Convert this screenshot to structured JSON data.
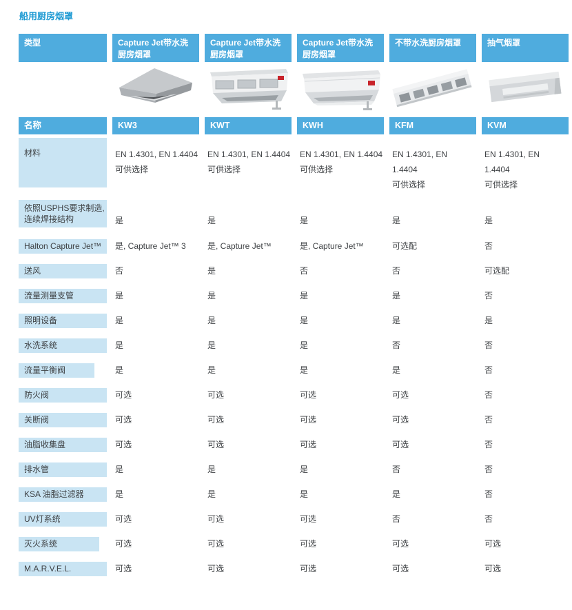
{
  "page": {
    "title": "船用厨房烟罩"
  },
  "colors": {
    "header_blue": "#4FACDE",
    "label_light_blue": "#C9E4F3",
    "title_blue": "#1E9AD3",
    "body_text": "#3F4245"
  },
  "table": {
    "type_label": "类型",
    "name_label": "名称",
    "type_columns": [
      "Capture Jet带水洗厨房烟罩",
      "Capture Jet带水洗厨房烟罩",
      "Capture Jet带水洗厨房烟罩",
      "不带水洗厨房烟罩",
      "抽气烟罩"
    ],
    "name_columns": [
      "KW3",
      "KWT",
      "KWH",
      "KFM",
      "KVM"
    ],
    "products": [
      {
        "code": "KW3",
        "image": "kw3-canopy-hood-image"
      },
      {
        "code": "KWT",
        "image": "kwt-box-hood-image"
      },
      {
        "code": "KWH",
        "image": "kwh-box-hood-image"
      },
      {
        "code": "KFM",
        "image": "kfm-filter-hood-image"
      },
      {
        "code": "KVM",
        "image": "kvm-exhaust-hood-image"
      }
    ],
    "material_row": {
      "label": "材料",
      "values": [
        "EN 1.4301, EN 1.4404\n可供选择",
        "EN 1.4301, EN 1.4404\n可供选择",
        "EN 1.4301, EN 1.4404\n可供选择",
        "EN 1.4301, EN\n1.4404\n可供选择",
        "EN 1.4301, EN\n1.4404\n可供选择"
      ]
    },
    "usphs_row": {
      "label": "依照USPHS要求制造,\n连续焊接结构",
      "values": [
        "是",
        "是",
        "是",
        "是",
        "是"
      ]
    },
    "rows": [
      {
        "label": "Halton Capture Jet™",
        "values": [
          "是, Capture Jet™ 3",
          "是, Capture Jet™",
          "是, Capture Jet™",
          "可选配",
          "否"
        ]
      },
      {
        "label": "送风",
        "values": [
          "否",
          "是",
          "否",
          "否",
          "可选配"
        ]
      },
      {
        "label": "流量测量支管",
        "values": [
          "是",
          "是",
          "是",
          "是",
          "否"
        ]
      },
      {
        "label": "照明设备",
        "values": [
          "是",
          "是",
          "是",
          "是",
          "是"
        ]
      },
      {
        "label": "水洗系统",
        "values": [
          "是",
          "是",
          "是",
          "否",
          "否"
        ]
      },
      {
        "label": "流量平衡阀",
        "label_width": 110,
        "values": [
          "是",
          "是",
          "是",
          "是",
          "否"
        ]
      },
      {
        "label": "防火阀",
        "values": [
          "可选",
          "可选",
          "可选",
          "可选",
          "否"
        ]
      },
      {
        "label": "关断阀",
        "values": [
          "可选",
          "可选",
          "可选",
          "可选",
          "否"
        ]
      },
      {
        "label": "油脂收集盘",
        "values": [
          "可选",
          "可选",
          "可选",
          "可选",
          "否"
        ]
      },
      {
        "label": "排水管",
        "values": [
          "是",
          "是",
          "是",
          "否",
          "否"
        ]
      },
      {
        "label": "KSA 油脂过滤器",
        "values": [
          "是",
          "是",
          "是",
          "是",
          "否"
        ]
      },
      {
        "label": "UV灯系统",
        "values": [
          "可选",
          "可选",
          "可选",
          "否",
          "否"
        ]
      },
      {
        "label": "灭火系统",
        "label_width": 117,
        "values": [
          "可选",
          "可选",
          "可选",
          "可选",
          "可选"
        ]
      },
      {
        "label": "M.A.R.V.E.L.",
        "values": [
          "可选",
          "可选",
          "可选",
          "可选",
          "可选"
        ]
      }
    ]
  }
}
